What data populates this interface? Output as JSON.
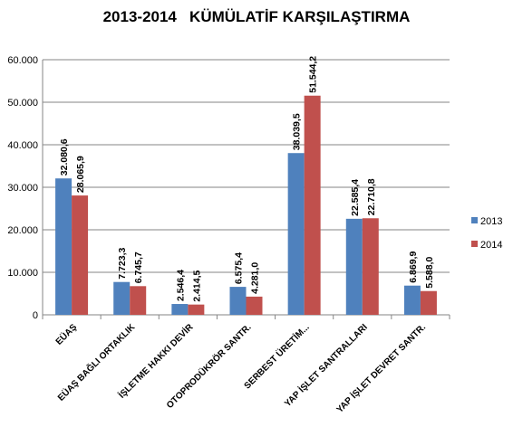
{
  "chart_data": {
    "type": "bar",
    "title": "2013-2014   KÜMÜLATİF KARŞILAŞTIRMA",
    "xlabel": "",
    "ylabel": "",
    "ylim": [
      0,
      60000
    ],
    "yticks": [
      0,
      10000,
      20000,
      30000,
      40000,
      50000,
      60000
    ],
    "ytick_labels": [
      "0",
      "10.000",
      "20.000",
      "30.000",
      "40.000",
      "50.000",
      "60.000"
    ],
    "grid": true,
    "legend_position": "right",
    "categories": [
      "EÜAŞ",
      "EÜAŞ BAĞLI ORTAKLIK",
      "İŞLETME HAKKI DEVİR",
      "OTOPRODÜKRÖR SANTR.",
      "SERBEST ÜRETİM...",
      "YAP İŞLET SANTRALLARI",
      "YAP İŞLET DEVRET SANTR."
    ],
    "series": [
      {
        "name": "2013",
        "color": "#4f81bd",
        "values": [
          32080.6,
          7723.3,
          2546.4,
          6575.4,
          38039.5,
          22585.4,
          6869.9
        ],
        "labels": [
          "32.080,6",
          "7.723,3",
          "2.546,4",
          "6.575,4",
          "38.039,5",
          "22.585,4",
          "6.869,9"
        ]
      },
      {
        "name": "2014",
        "color": "#c0504d",
        "values": [
          28065.9,
          6745.7,
          2414.5,
          4281.0,
          51544.2,
          22710.8,
          5588.0
        ],
        "labels": [
          "28.065,9",
          "6.745,7",
          "2.414,5",
          "4.281,0",
          "51.544,2",
          "22.710,8",
          "5.588,0"
        ]
      }
    ]
  }
}
